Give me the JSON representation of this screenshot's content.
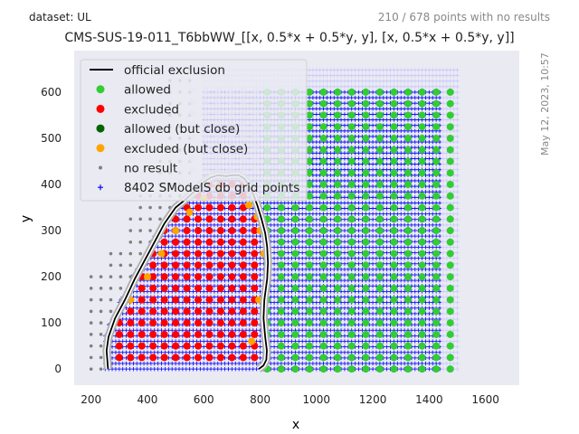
{
  "header": {
    "dataset_label": "dataset: UL",
    "points_note": "210 / 678 points with no results",
    "timestamp": "May 12, 2023, 10:57"
  },
  "colors": {
    "background": "#eaeaf2",
    "grid_points": "#0000ff",
    "grid_light": "#c8c8ff",
    "allowed": "#32cd32",
    "excluded": "#ff0000",
    "allowed_close": "#006400",
    "excluded_close": "#ffa500",
    "no_result": "#808080",
    "official": "#000000"
  },
  "chart_data": {
    "type": "scatter",
    "title": "CMS-SUS-19-011_T6bbWW_[[x, 0.5*x + 0.5*y, y], [x, 0.5*x + 0.5*y, y]]",
    "xlabel": "x",
    "ylabel": "y",
    "xlim": [
      140,
      1720
    ],
    "ylim": [
      -35,
      690
    ],
    "xticks": [
      200,
      400,
      600,
      800,
      1000,
      1200,
      1400,
      1600
    ],
    "yticks": [
      0,
      100,
      200,
      300,
      400,
      500,
      600
    ],
    "grid": false,
    "legend_position": "top-left",
    "legend": [
      {
        "label": "official exclusion",
        "marker": "line",
        "color": "#000000"
      },
      {
        "label": "allowed",
        "marker": "dot",
        "color": "#32cd32"
      },
      {
        "label": "excluded",
        "marker": "dot",
        "color": "#ff0000"
      },
      {
        "label": "allowed (but close)",
        "marker": "dot",
        "color": "#006400"
      },
      {
        "label": "excluded (but close)",
        "marker": "dot",
        "color": "#ffa500"
      },
      {
        "label": "no result",
        "marker": "small",
        "color": "#808080"
      },
      {
        "label": "8402 SModelS db grid points",
        "marker": "plus",
        "color": "#0000ff"
      }
    ],
    "official_exclusion": {
      "x": [
        260,
        255,
        262,
        285,
        320,
        355,
        390,
        425,
        460,
        500,
        540,
        575,
        600,
        625,
        650,
        680,
        700,
        725,
        745,
        760,
        775,
        790,
        805,
        818,
        825,
        828,
        825,
        815,
        812,
        818,
        824,
        822,
        812,
        795
      ],
      "y": [
        0,
        40,
        70,
        110,
        150,
        195,
        235,
        275,
        315,
        350,
        370,
        390,
        405,
        415,
        420,
        418,
        420,
        420,
        412,
        398,
        380,
        355,
        325,
        295,
        265,
        230,
        195,
        150,
        110,
        70,
        40,
        20,
        8,
        0
      ]
    },
    "allowed_region": {
      "x_min": 825,
      "x_max": 1500,
      "y_min": 0,
      "y_max": 620,
      "dx": 50,
      "dy": 25
    },
    "excluded_region": {
      "dx": 40,
      "dy": 25
    },
    "no_result_region": {
      "x_min": 200,
      "x_max": 1650,
      "y_min": 0,
      "y_max": 650,
      "dx": 35,
      "dy": 25
    },
    "excluded_close": {
      "x": [
        760,
        790,
        800,
        812,
        795,
        770,
        340,
        400,
        450,
        500,
        550,
        600,
        650
      ],
      "y": [
        355,
        330,
        300,
        250,
        150,
        60,
        150,
        200,
        250,
        300,
        340,
        370,
        395
      ]
    }
  }
}
